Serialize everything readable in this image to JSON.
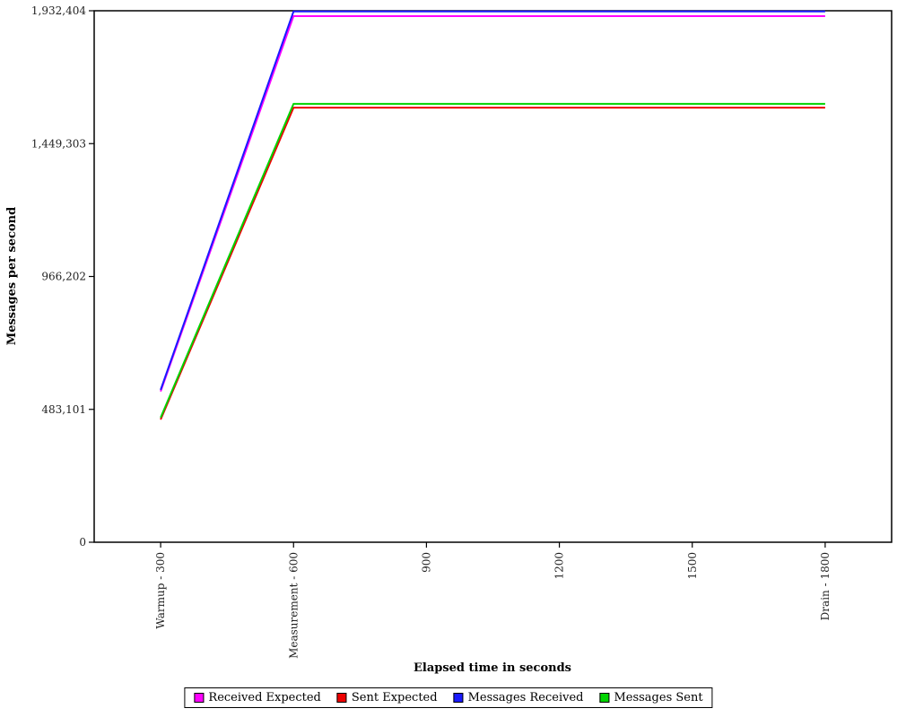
{
  "chart_data": {
    "type": "line",
    "title": "",
    "xlabel": "Elapsed time in seconds",
    "ylabel": "Messages per second",
    "categories": [
      "Warmup - 300",
      "Measurement - 600",
      "900",
      "1200",
      "1500",
      "Drain - 1800"
    ],
    "series": [
      {
        "name": "Received Expected",
        "color": "#ff00ff",
        "values": [
          548000,
          1913000,
          1913000,
          1913000,
          1913000,
          1913000
        ]
      },
      {
        "name": "Sent Expected",
        "color": "#ee0000",
        "values": [
          446000,
          1580000,
          1580000,
          1580000,
          1580000,
          1580000
        ]
      },
      {
        "name": "Messages Received",
        "color": "#1a1aff",
        "values": [
          554000,
          1930000,
          1930000,
          1930000,
          1930000,
          1930000
        ]
      },
      {
        "name": "Messages Sent",
        "color": "#00d400",
        "values": [
          453000,
          1594000,
          1594000,
          1594000,
          1594000,
          1594000
        ]
      }
    ],
    "ylim": [
      0,
      1932404
    ],
    "y_tick_values": [
      0,
      483101,
      966202,
      1449303,
      1932404
    ],
    "y_tick_labels": [
      "0",
      "483,101",
      "966,202",
      "1,449,303",
      "1,932,404"
    ],
    "grid": false,
    "legend_position": "bottom",
    "plot_border_color": "#000000",
    "background_color": "#ffffff"
  }
}
